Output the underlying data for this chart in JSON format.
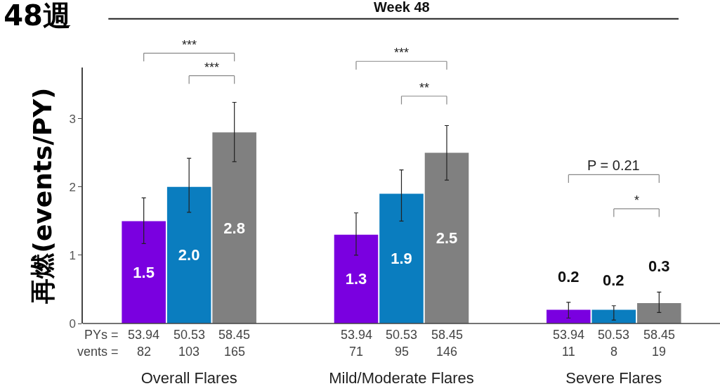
{
  "chart_data": {
    "type": "bar",
    "title": "48週",
    "subtitle": "Week 48",
    "ylabel": "再燃(events/PY)",
    "categories": [
      "Overall Flares",
      "Mild/Moderate Flares",
      "Severe Flares"
    ],
    "series": [
      {
        "color": "#7a00e0",
        "values": [
          1.5,
          1.3,
          0.2
        ],
        "value_labels": [
          "1.5",
          "1.3",
          "0.2"
        ],
        "errors": [
          [
            1.17,
            1.84
          ],
          [
            1.0,
            1.62
          ],
          [
            0.08,
            0.31
          ]
        ]
      },
      {
        "color": "#0a7dbf",
        "values": [
          2.0,
          1.9,
          0.2
        ],
        "value_labels": [
          "2.0",
          "1.9",
          "0.2"
        ],
        "errors": [
          [
            1.63,
            2.42
          ],
          [
            1.5,
            2.25
          ],
          [
            0.05,
            0.26
          ]
        ]
      },
      {
        "color": "#808080",
        "values": [
          2.8,
          2.5,
          0.3
        ],
        "value_labels": [
          "2.8",
          "2.5",
          "0.3"
        ],
        "errors": [
          [
            2.37,
            3.24
          ],
          [
            2.1,
            2.9
          ],
          [
            0.16,
            0.46
          ]
        ]
      }
    ],
    "ylim": [
      0,
      3.75
    ],
    "yticks": [
      0,
      1,
      2,
      3
    ],
    "grid": false,
    "annotations": [
      "PYs =",
      "vents =",
      "53.94",
      "50.53",
      "58.45",
      "53.94",
      "50.53",
      "58.45",
      "53.94",
      "50.53",
      "58.45",
      "82",
      "103",
      "165",
      "71",
      "95",
      "146",
      "11",
      "8",
      "19",
      "***",
      "***",
      "***",
      "**",
      "P = 0.21",
      "*"
    ]
  }
}
